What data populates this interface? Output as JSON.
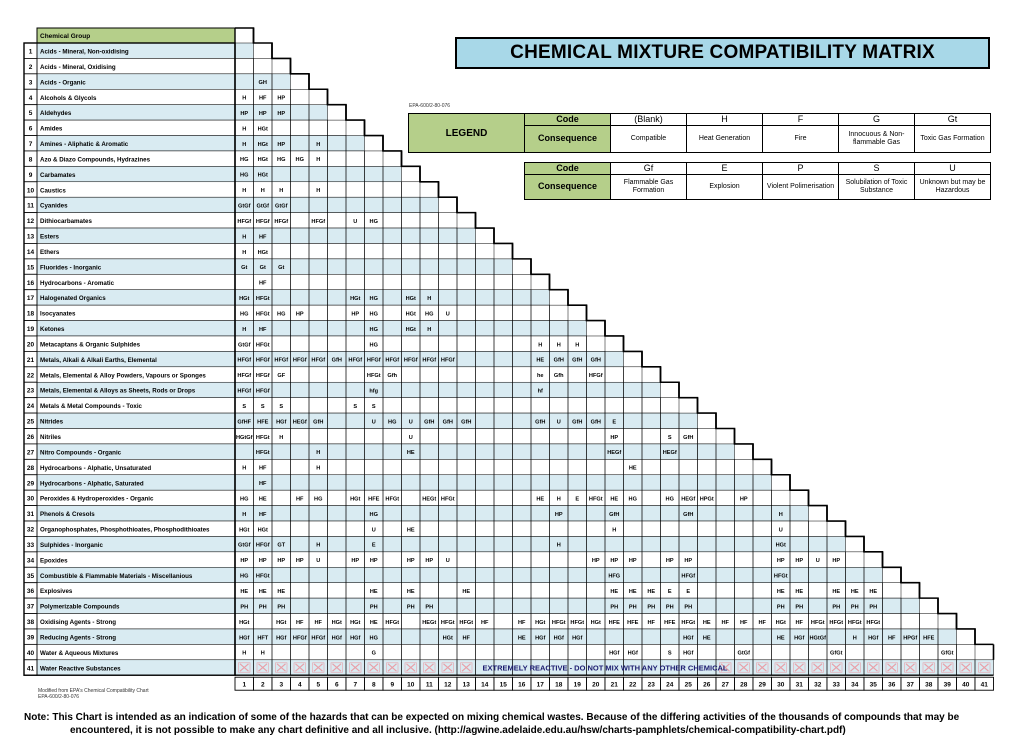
{
  "title": "CHEMICAL MIXTURE COMPATIBILITY MATRIX",
  "epa_reference": "EPA-600/2-80-076",
  "header_group_label": "Chemical Group",
  "legend": {
    "label": "LEGEND",
    "code_label": "Code",
    "consequence_label": "Consequence",
    "row1": [
      {
        "code": "(Blank)",
        "consequence": "Compatible"
      },
      {
        "code": "H",
        "consequence": "Heat Generation"
      },
      {
        "code": "F",
        "consequence": "Fire"
      },
      {
        "code": "G",
        "consequence": "Innocuous & Non-flammable Gas"
      },
      {
        "code": "Gt",
        "consequence": "Toxic Gas Formation"
      }
    ],
    "row2": [
      {
        "code": "Gf",
        "consequence": "Flammable Gas Formation"
      },
      {
        "code": "E",
        "consequence": "Explosion"
      },
      {
        "code": "P",
        "consequence": "Violent Polimerisation"
      },
      {
        "code": "S",
        "consequence": "Solubilation of Toxic Substance"
      },
      {
        "code": "U",
        "consequence": "Unknown but may be Hazardous"
      }
    ]
  },
  "groups": [
    "Acids - Mineral, Non-oxidising",
    "Acids - Mineral, Oxidising",
    "Acids - Organic",
    "Alcohols & Glycols",
    "Aldehydes",
    "Amides",
    "Amines - Aliphatic & Aromatic",
    "Azo & Diazo Compounds, Hydrazines",
    "Carbamates",
    "Caustics",
    "Cyanides",
    "Dithiocarbamates",
    "Esters",
    "Ethers",
    "Fluorides - Inorganic",
    "Hydrocarbons - Aromatic",
    "Halogenated Organics",
    "Isocyanates",
    "Ketones",
    "Metacaptans & Organic Sulphides",
    "Metals, Alkali & Alkali Earths, Elemental",
    "Metals, Elemental & Alloy Powders, Vapours or Sponges",
    "Metals, Elemental & Alloys as Sheets, Rods or Drops",
    "Metals & Metal Compounds - Toxic",
    "Nitrides",
    "Nitriles",
    "Nitro Compounds - Organic",
    "Hydrocarbons - Alphatic, Unsaturated",
    "Hydrocarbons - Alphatic, Saturated",
    "Peroxides & Hydroperoxides - Organic",
    "Phenols & Cresols",
    "Organophosphates, Phosphothioates, Phosphodithioates",
    "Sulphides - Inorganic",
    "Epoxides",
    "Combustible & Flammable Materials - Miscellanious",
    "Explosives",
    "Polymerizable Compounds",
    "Oxidising Agents - Strong",
    "Reducing Agents - Strong",
    "Water & Aqueous Mixtures",
    "Water Reactive Substances"
  ],
  "matrix": [
    [],
    [],
    [
      "",
      "GH"
    ],
    [
      "H",
      "HF",
      "HP"
    ],
    [
      "HP",
      "HP",
      "HP"
    ],
    [
      "H",
      "HGt"
    ],
    [
      "H",
      "HGt",
      "HP",
      "",
      "H"
    ],
    [
      "HG",
      "HGt",
      "HG",
      "HG",
      "H"
    ],
    [
      "HG",
      "HGt"
    ],
    [
      "H",
      "H",
      "H",
      "",
      "H"
    ],
    [
      "GtGf",
      "GtGf",
      "GtGf"
    ],
    [
      "HFGf",
      "HFGf",
      "HFGf",
      "",
      "HFGf",
      "",
      "U",
      "HG"
    ],
    [
      "H",
      "HF"
    ],
    [
      "H",
      "HGt"
    ],
    [
      "Gt",
      "Gt",
      "Gt"
    ],
    [
      "",
      "HF"
    ],
    [
      "HGt",
      "HFGt",
      "",
      "",
      "",
      "",
      "HGt",
      "HG",
      "",
      "HGt",
      "H"
    ],
    [
      "HG",
      "HFGt",
      "HG",
      "HP",
      "",
      "",
      "HP",
      "HG",
      "",
      "HGt",
      "HG",
      "U"
    ],
    [
      "H",
      "HF",
      "",
      "",
      "",
      "",
      "",
      "HG",
      "",
      "HGt",
      "H"
    ],
    [
      "GtGf",
      "HFGt",
      "",
      "",
      "",
      "",
      "",
      "HG"
    ],
    [
      "HFGf",
      "HFGf",
      "HFGf",
      "HFGf",
      "HFGf",
      "GfH",
      "HFGf",
      "HFGf",
      "HFGf",
      "HFGf",
      "HFGf",
      "HFGf"
    ],
    [
      "HFGf",
      "HFGf",
      "GF",
      "",
      "",
      "",
      "",
      "HFGt",
      "Gfh"
    ],
    [
      "HFGf",
      "HFGf"
    ],
    [
      "S",
      "S",
      "S",
      "",
      "",
      "",
      "S",
      "S"
    ],
    [
      "GfHF",
      "HFE",
      "HGf",
      "HEGf",
      "GfH",
      "",
      "",
      "U",
      "HG",
      "U",
      "GfH",
      "GfH",
      "GfH"
    ],
    [
      "HGtGf",
      "HFGt",
      "H",
      "",
      "",
      "",
      "",
      "",
      "",
      "U"
    ],
    [
      "",
      "HFGt",
      "",
      "",
      "H",
      "",
      "",
      "",
      "",
      "HE"
    ],
    [
      "H",
      "HF",
      "",
      "",
      "H"
    ],
    [
      "",
      "HF"
    ],
    [
      "HG",
      "HE",
      "",
      "HF",
      "HG",
      "",
      "HGt",
      "HFE",
      "HFGt",
      "",
      "HEGt",
      "HFGt"
    ],
    [
      "H",
      "HF",
      "",
      "",
      "",
      "",
      "",
      "HG"
    ],
    [
      "HGt",
      "HGt",
      "",
      "",
      "",
      "",
      "",
      "U",
      "",
      "HE"
    ],
    [
      "GtGf",
      "HFGf",
      "GT",
      "",
      "H",
      "",
      "",
      "E"
    ],
    [
      "HP",
      "HP",
      "HP",
      "HP",
      "U",
      "",
      "HP",
      "HP",
      "",
      "HP",
      "HP",
      "U"
    ],
    [
      "HG",
      "HFGt"
    ],
    [
      "HE",
      "HE",
      "HE",
      "",
      "",
      "",
      "",
      "HE",
      "",
      "HE",
      "",
      "",
      "HE"
    ],
    [
      "PH",
      "PH",
      "PH",
      "",
      "",
      "",
      "",
      "PH",
      "",
      "PH",
      "PH"
    ],
    [
      "HGt",
      "",
      "HGt",
      "HF",
      "HF",
      "HGt",
      "HGt",
      "HE",
      "HFGt",
      "",
      "HEGt",
      "HFGt",
      "HFGt",
      "HF",
      "",
      "HF",
      "HGt",
      "HFGt",
      "HFGt",
      "HGt",
      "HFE",
      "HFE",
      "HF"
    ],
    [
      "HGf",
      "HFT",
      "HGf",
      "HFGf",
      "HFGf",
      "HGf",
      "HGf",
      "HG",
      "",
      "",
      "",
      "HGt",
      "HF",
      "",
      "",
      "HE",
      "HGf",
      "HGf",
      "HGf"
    ],
    [
      "H",
      "H",
      "",
      "",
      "",
      "",
      "",
      "G"
    ],
    []
  ],
  "matrix_extra": {
    "20": {
      "17": "H",
      "18": "H",
      "19": "H"
    },
    "21": {
      "17": "HE",
      "18": "GfH",
      "19": "GfH",
      "20": "GfH"
    },
    "22": {
      "17": "he",
      "18": "Gfh",
      "20": "HFGf"
    },
    "23": {
      "17": "hf",
      "8": "hfg"
    },
    "25": {
      "17": "GfH",
      "18": "U",
      "19": "GfH",
      "20": "GfH",
      "21": "E"
    },
    "26": {
      "21": "HP",
      "24": "S",
      "25": "GfH"
    },
    "27": {
      "21": "HEGf",
      "24": "HEGf"
    },
    "28": {
      "22": "HE"
    },
    "30": {
      "17": "HE",
      "18": "H",
      "19": "E",
      "20": "HFGt",
      "21": "HE",
      "22": "HG",
      "24": "HG",
      "25": "HEGf",
      "26": "HPGt",
      "28": "HP"
    },
    "31": {
      "18": "HP",
      "21": "GfH",
      "25": "GfH",
      "30": "H"
    },
    "32": {
      "21": "H",
      "30": "U"
    },
    "33": {
      "18": "H",
      "30": "HGt"
    },
    "34": {
      "20": "HP",
      "21": "HP",
      "22": "HP",
      "24": "HP",
      "25": "HP",
      "30": "HP",
      "31": "HP",
      "32": "U",
      "33": "HP"
    },
    "35": {
      "21": "HFG",
      "25": "HFGf",
      "30": "HFGt"
    },
    "36": {
      "21": "HE",
      "22": "HE",
      "23": "HE",
      "24": "E",
      "25": "E",
      "30": "HE",
      "31": "HE",
      "33": "HE",
      "34": "HE",
      "35": "HE"
    },
    "37": {
      "21": "PH",
      "22": "PH",
      "23": "PH",
      "24": "PH",
      "25": "PH",
      "30": "PH",
      "31": "PH",
      "33": "PH",
      "34": "PH",
      "35": "PH"
    },
    "38": {
      "24": "HFE",
      "25": "HFGt",
      "26": "HE",
      "27": "HF",
      "28": "HF",
      "29": "HF",
      "30": "HGt",
      "31": "HF",
      "32": "HFGt",
      "33": "HFGt",
      "34": "HFGt",
      "35": "HFGt"
    },
    "39": {
      "25": "HGf",
      "26": "HE",
      "30": "HE",
      "31": "HGf",
      "32": "HGtGf",
      "34": "H",
      "35": "HGf",
      "36": "HF",
      "37": "HPGf",
      "38": "HFE"
    },
    "40": {
      "21": "HGf",
      "22": "HGf",
      "24": "S",
      "25": "HGf",
      "28": "GtGf",
      "33": "GfGt",
      "39": "GfGt"
    }
  },
  "reactive_row_text": "EXTREMELY REACTIVE - DO NOT MIX WITH ANY OTHER CHEMICAL",
  "source_note": "Modified from EPA's Chemical Compatibility Chart",
  "source_note_2": "EPA-600/2-80-076",
  "footnote_line1": "Note: This Chart is intended as an indication of some of the hazards that can be expected on mixing chemical wastes. Because of the differing activities of the thousands of compounds that may be",
  "footnote_line2": "encountered, it is not possible to make any chart definitive and all inclusive. (http://agwine.adelaide.edu.au/hsw/charts-pamphlets/chemical-compatibility-chart.pdf)",
  "colors": {
    "header_green": "#b5cf8a",
    "row_blue": "#d9ebf2",
    "title_blue": "#a8d8e8",
    "reactive_text": "#1a1a6e",
    "cross_red": "#e8a0a8"
  }
}
